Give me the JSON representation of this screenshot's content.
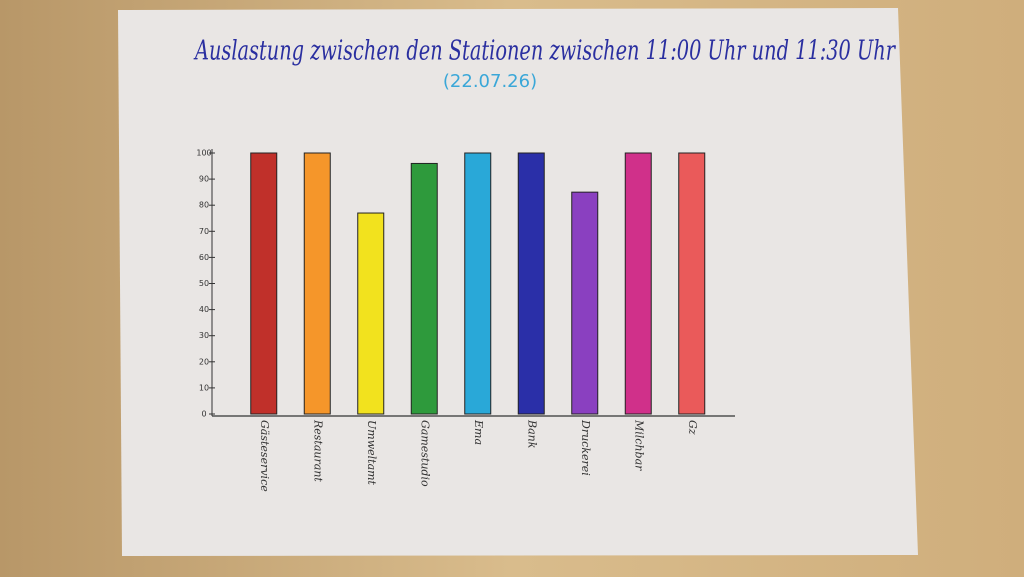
{
  "chart_data": {
    "type": "bar",
    "title": "Auslastung zwischen den Stationen zwischen 11:00 Uhr und 11:30 Uhr",
    "subtitle": "(22.07.26)",
    "categories": [
      "Gästeservice",
      "Restaurant",
      "Umweltamt",
      "Gamestudio",
      "Ema",
      "Bank",
      "Druckerei",
      "Milchbar",
      "Gz"
    ],
    "values": [
      100,
      100,
      77,
      96,
      100,
      100,
      85,
      100,
      100
    ],
    "colors": [
      "#c0302a",
      "#f5962a",
      "#f2e21e",
      "#2e9a3c",
      "#29a8d8",
      "#2a2fa8",
      "#8a40c0",
      "#d0308a",
      "#ea5a5a"
    ],
    "ylim": [
      0,
      100
    ],
    "yticks": [
      0,
      10,
      20,
      30,
      40,
      50,
      60,
      70,
      80,
      90,
      100
    ]
  }
}
